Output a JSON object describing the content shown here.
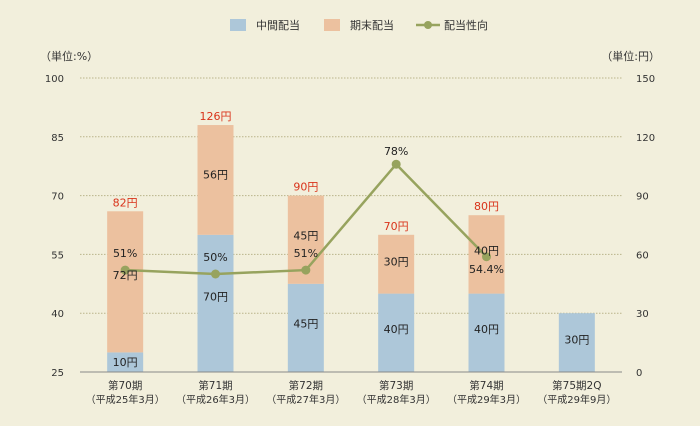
{
  "chart_data": {
    "type": "bar",
    "legend_position": "top",
    "grid": true,
    "categories": [
      [
        "第70期",
        "（平成25年3月）"
      ],
      [
        "第71期",
        "（平成26年3月）"
      ],
      [
        "第72期",
        "（平成27年3月）"
      ],
      [
        "第73期",
        "（平成28年3月）"
      ],
      [
        "第74期",
        "（平成29年3月）"
      ],
      [
        "第75期2Q",
        "（平成29年9月）"
      ]
    ],
    "left_axis": {
      "unit_label": "（単位:%）",
      "ylim": [
        25,
        100
      ],
      "ticks": [
        25,
        40,
        55,
        70,
        85,
        100
      ]
    },
    "right_axis": {
      "unit_label": "（単位:円）",
      "ylim": [
        0,
        150
      ],
      "ticks": [
        0,
        30,
        60,
        90,
        120,
        150
      ]
    },
    "series": [
      {
        "name": "中間配当",
        "kind": "bar",
        "axis": "right",
        "color": "#adc7d9",
        "values": [
          10,
          70,
          45,
          40,
          40,
          30
        ],
        "labels": [
          "10円",
          "70円",
          "45円",
          "40円",
          "40円",
          "30円"
        ]
      },
      {
        "name": "期末配当",
        "kind": "bar",
        "axis": "right",
        "color": "#ecc19f",
        "values": [
          72,
          56,
          45,
          30,
          40,
          null
        ],
        "labels": [
          "72円",
          "56円",
          "45円",
          "30円",
          "40円",
          ""
        ]
      },
      {
        "name": "配当性向",
        "kind": "line",
        "axis": "left",
        "color": "#97a35e",
        "values": [
          51,
          50,
          51,
          78,
          54.4,
          null
        ],
        "labels": [
          "51%",
          "50%",
          "51%",
          "78%",
          "54.4%",
          ""
        ]
      }
    ],
    "totals": {
      "values": [
        82,
        126,
        90,
        70,
        80,
        null
      ],
      "labels": [
        "82円",
        "126円",
        "90円",
        "70円",
        "80円",
        ""
      ],
      "color": "#d9331a"
    }
  }
}
